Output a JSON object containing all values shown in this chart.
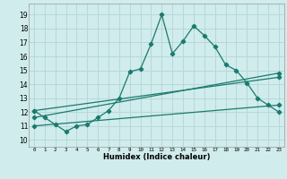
{
  "title": "",
  "xlabel": "Humidex (Indice chaleur)",
  "ylabel": "",
  "background_color": "#d0ecec",
  "grid_color": "#b8d8d8",
  "line_color": "#1a7a6e",
  "x_ticks": [
    0,
    1,
    2,
    3,
    4,
    5,
    6,
    7,
    8,
    9,
    10,
    11,
    12,
    13,
    14,
    15,
    16,
    17,
    18,
    19,
    20,
    21,
    22,
    23
  ],
  "y_ticks": [
    10,
    11,
    12,
    13,
    14,
    15,
    16,
    17,
    18,
    19
  ],
  "xlim": [
    -0.5,
    23.5
  ],
  "ylim": [
    9.5,
    19.8
  ],
  "line1_x": [
    0,
    1,
    2,
    3,
    4,
    5,
    6,
    7,
    8,
    9,
    10,
    11,
    12,
    13,
    14,
    15,
    16,
    17,
    18,
    19,
    20,
    21,
    22,
    23
  ],
  "line1_y": [
    12.1,
    11.6,
    11.1,
    10.6,
    11.0,
    11.1,
    11.6,
    12.1,
    13.0,
    14.9,
    15.1,
    16.9,
    19.0,
    16.2,
    17.1,
    18.2,
    17.5,
    16.7,
    15.4,
    15.0,
    14.1,
    13.0,
    12.5,
    12.0
  ],
  "line2_x": [
    0,
    23
  ],
  "line2_y": [
    11.6,
    14.8
  ],
  "line3_x": [
    0,
    23
  ],
  "line3_y": [
    11.0,
    12.5
  ],
  "line4_x": [
    0,
    23
  ],
  "line4_y": [
    12.1,
    14.5
  ]
}
